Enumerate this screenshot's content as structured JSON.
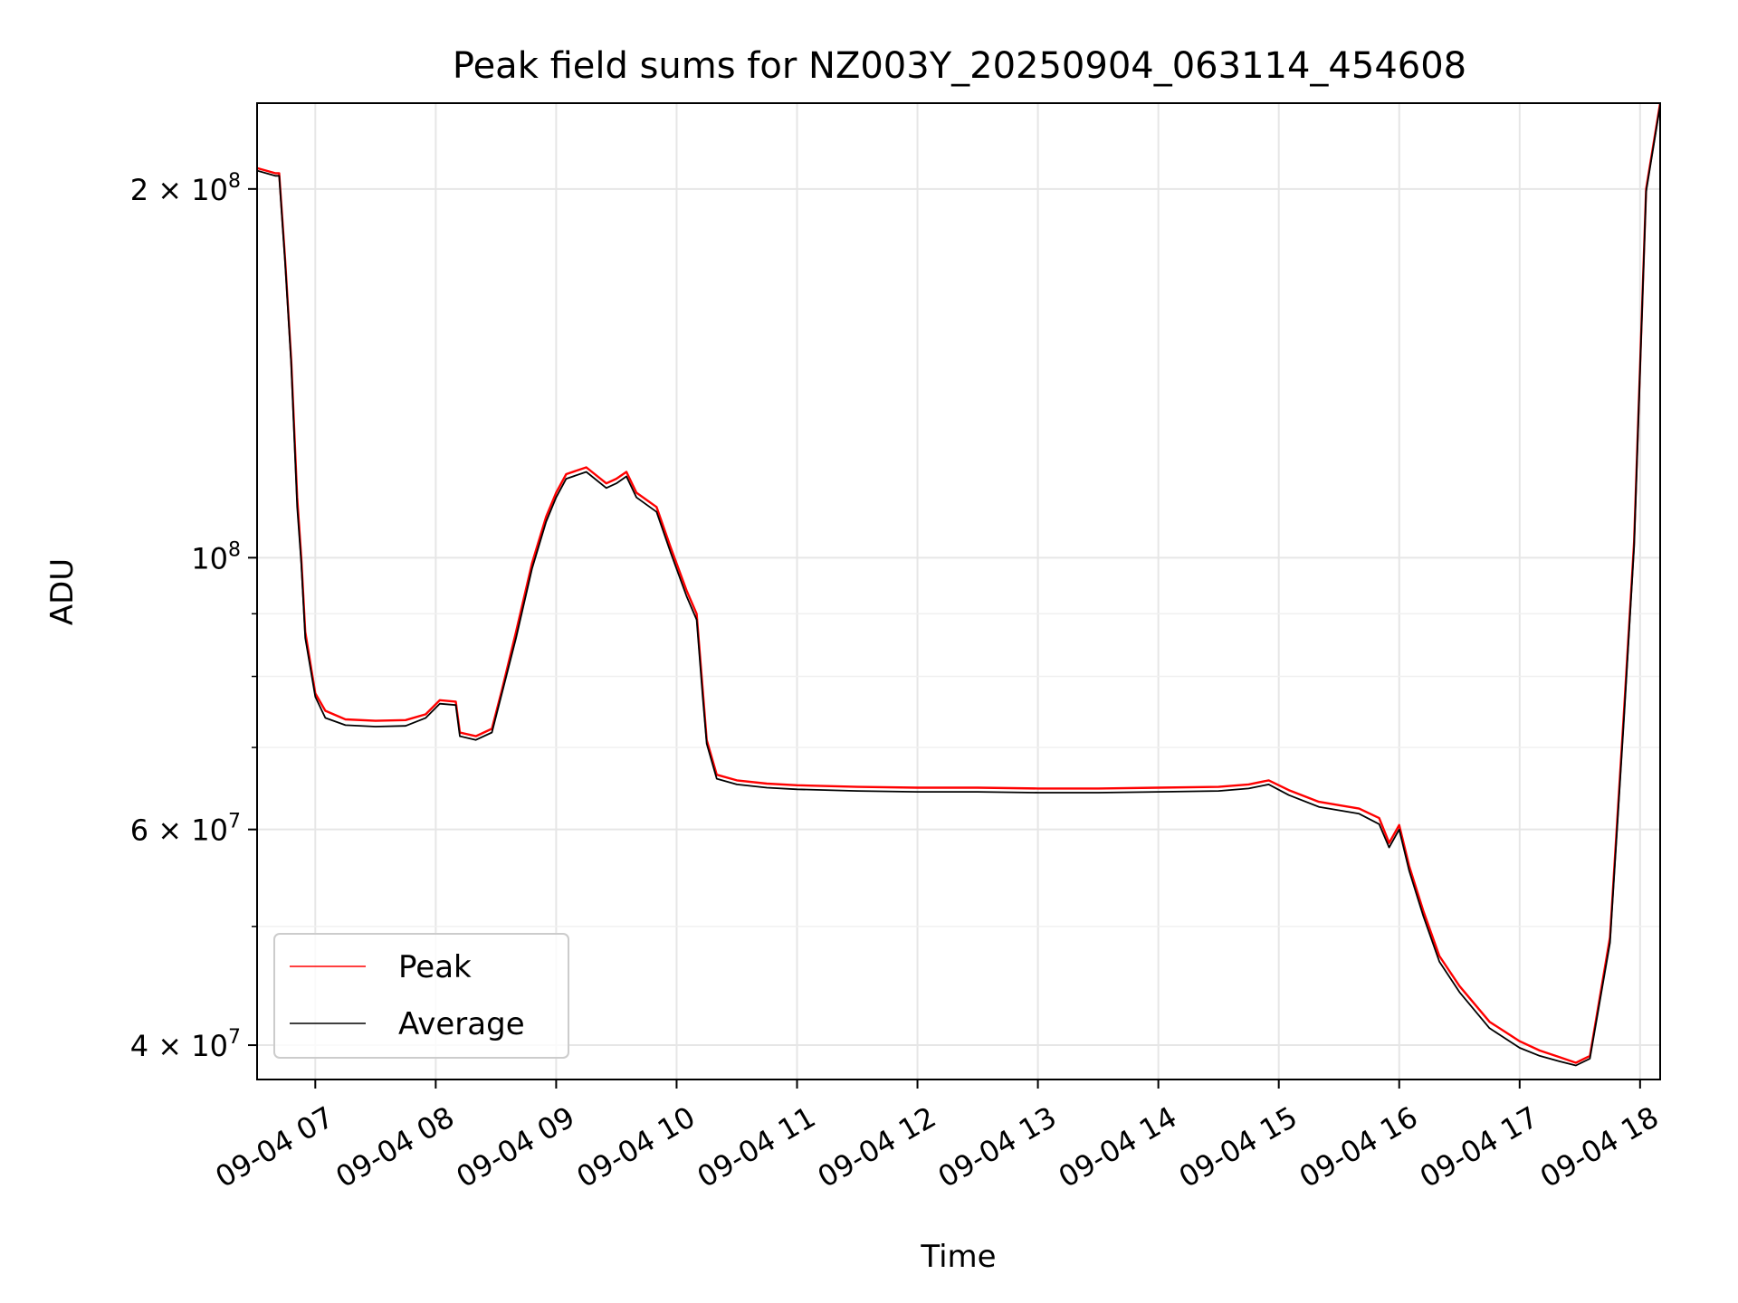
{
  "chart_data": {
    "type": "line",
    "title": "Peak field sums for NZ003Y_20250904_063114_454608",
    "xlabel": "Time",
    "ylabel": "ADU",
    "y_scale": "log",
    "grid": true,
    "legend_position": "lower-left",
    "xlim": [
      "2025-09-04 06:31",
      "2025-09-04 18:10"
    ],
    "ylim": [
      37500000,
      235000000
    ],
    "x_ticks": [
      "09-04 07",
      "09-04 08",
      "09-04 09",
      "09-04 10",
      "09-04 11",
      "09-04 12",
      "09-04 13",
      "09-04 14",
      "09-04 15",
      "09-04 16",
      "09-04 17",
      "09-04 18"
    ],
    "y_major_ticks": [
      {
        "value": 40000000,
        "mantissa": "4",
        "exponent": "7"
      },
      {
        "value": 60000000,
        "mantissa": "6",
        "exponent": "7"
      },
      {
        "value": 100000000,
        "mantissa": "",
        "exponent": "8"
      },
      {
        "value": 200000000,
        "mantissa": "2",
        "exponent": "8"
      }
    ],
    "y_minor_ticks": [
      50000000,
      70000000,
      80000000,
      90000000
    ],
    "x": [
      "06:31",
      "06:40",
      "06:42",
      "06:45",
      "06:48",
      "06:51",
      "06:53",
      "06:55",
      "07:00",
      "07:05",
      "07:15",
      "07:30",
      "07:45",
      "07:55",
      "08:02",
      "08:10",
      "08:12",
      "08:20",
      "08:28",
      "08:33",
      "08:40",
      "08:48",
      "08:55",
      "09:00",
      "09:05",
      "09:15",
      "09:25",
      "09:30",
      "09:35",
      "09:40",
      "09:50",
      "09:57",
      "10:05",
      "10:10",
      "10:13",
      "10:15",
      "10:20",
      "10:30",
      "10:45",
      "11:00",
      "11:30",
      "12:00",
      "12:30",
      "13:00",
      "13:30",
      "14:00",
      "14:30",
      "14:45",
      "14:55",
      "15:05",
      "15:20",
      "15:40",
      "15:50",
      "15:55",
      "16:00",
      "16:05",
      "16:12",
      "16:20",
      "16:30",
      "16:45",
      "17:00",
      "17:10",
      "17:20",
      "17:28",
      "17:35",
      "17:45",
      "17:52",
      "17:57",
      "18:03",
      "18:10"
    ],
    "series": [
      {
        "name": "Peak",
        "color": "#ff0000",
        "values": [
          208000000,
          206000000,
          206000000,
          175000000,
          145000000,
          112000000,
          100000000,
          87000000,
          77500000,
          75000000,
          73800000,
          73600000,
          73700000,
          74500000,
          76500000,
          76300000,
          72000000,
          71500000,
          72500000,
          78000000,
          87000000,
          99000000,
          108000000,
          113000000,
          117000000,
          118500000,
          115000000,
          116000000,
          117500000,
          113000000,
          110000000,
          102000000,
          94000000,
          90000000,
          78000000,
          71000000,
          66500000,
          65800000,
          65400000,
          65200000,
          65000000,
          64900000,
          64900000,
          64800000,
          64800000,
          64900000,
          65000000,
          65300000,
          65800000,
          64600000,
          63200000,
          62400000,
          61300000,
          58500000,
          60500000,
          56000000,
          51500000,
          47300000,
          44700000,
          41800000,
          40300000,
          39600000,
          39100000,
          38700000,
          39200000,
          49000000,
          75000000,
          103000000,
          200000000,
          235000000
        ]
      },
      {
        "name": "Average",
        "color": "#000000",
        "values": [
          207000000,
          205000000,
          205000000,
          174000000,
          144000000,
          110000000,
          99000000,
          86000000,
          77000000,
          74000000,
          73000000,
          72800000,
          72900000,
          74000000,
          76000000,
          75800000,
          71500000,
          71000000,
          72000000,
          77500000,
          86000000,
          98000000,
          107000000,
          112000000,
          116000000,
          117500000,
          114000000,
          115000000,
          116500000,
          112000000,
          109000000,
          101000000,
          93000000,
          89000000,
          77000000,
          70500000,
          66000000,
          65300000,
          64900000,
          64700000,
          64500000,
          64400000,
          64400000,
          64300000,
          64300000,
          64400000,
          64500000,
          64800000,
          65300000,
          64000000,
          62600000,
          61800000,
          60600000,
          58000000,
          60000000,
          55500000,
          51000000,
          46800000,
          44200000,
          41300000,
          39800000,
          39200000,
          38800000,
          38500000,
          39000000,
          48500000,
          74000000,
          102000000,
          199000000,
          234000000
        ]
      }
    ]
  }
}
